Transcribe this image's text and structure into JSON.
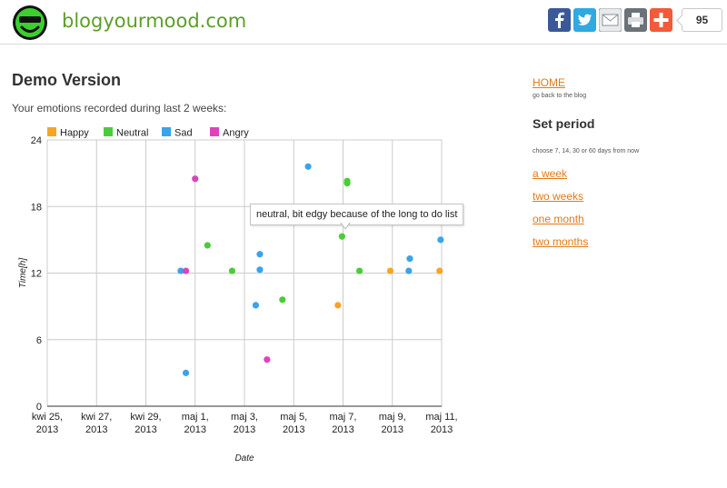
{
  "header": {
    "brand": "blogyourmood.com",
    "share_count": "95",
    "share_buttons": [
      {
        "icon": "facebook-icon",
        "color": "#3b5998"
      },
      {
        "icon": "twitter-icon",
        "color": "#2fa9e0"
      },
      {
        "icon": "email-icon",
        "color": "#9aa3a8"
      },
      {
        "icon": "print-icon",
        "color": "#6b7278"
      },
      {
        "icon": "add-icon",
        "color": "#f15a3a"
      }
    ]
  },
  "main": {
    "title": "Demo Version",
    "subtitle": "Your emotions recorded during last 2 weeks:"
  },
  "tooltip": {
    "text": "neutral, bit edgy because of the long to do list"
  },
  "sidebar": {
    "home_label": "HOME",
    "home_desc": "go back to the blog",
    "period_title": "Set period",
    "period_desc": "choose 7, 14, 30 or 60 days from now",
    "links": [
      "a week",
      "two weeks",
      "one month",
      "two months"
    ]
  },
  "chart_data": {
    "type": "scatter",
    "xlabel": "Date",
    "ylabel": "Time[h]",
    "ylim": [
      0,
      24
    ],
    "yticks": [
      0,
      6,
      12,
      18,
      24
    ],
    "xlim": [
      "2013-04-25",
      "2013-05-11"
    ],
    "xticks": [
      {
        "date": "2013-04-25",
        "line1": "kwi 25,",
        "line2": "2013"
      },
      {
        "date": "2013-04-27",
        "line1": "kwi 27,",
        "line2": "2013"
      },
      {
        "date": "2013-04-29",
        "line1": "kwi 29,",
        "line2": "2013"
      },
      {
        "date": "2013-05-01",
        "line1": "maj 1,",
        "line2": "2013"
      },
      {
        "date": "2013-05-03",
        "line1": "maj 3,",
        "line2": "2013"
      },
      {
        "date": "2013-05-05",
        "line1": "maj 5,",
        "line2": "2013"
      },
      {
        "date": "2013-05-07",
        "line1": "maj 7,",
        "line2": "2013"
      },
      {
        "date": "2013-05-09",
        "line1": "maj 9,",
        "line2": "2013"
      },
      {
        "date": "2013-05-11",
        "line1": "maj 11,",
        "line2": "2013"
      }
    ],
    "grid": true,
    "legend_position": "top-left",
    "series": [
      {
        "name": "Happy",
        "color": "#f5a623",
        "points": [
          {
            "x": "2013-05-06 19:00",
            "y": 9.1
          },
          {
            "x": "2013-05-08 22:00",
            "y": 12.2
          },
          {
            "x": "2013-05-10 22:00",
            "y": 12.2
          }
        ]
      },
      {
        "name": "Neutral",
        "color": "#4ccb3a",
        "points": [
          {
            "x": "2013-05-01 12:00",
            "y": 14.5
          },
          {
            "x": "2013-05-02 12:00",
            "y": 12.2
          },
          {
            "x": "2013-05-04 13:00",
            "y": 9.6
          },
          {
            "x": "2013-05-06 23:00",
            "y": 15.3
          },
          {
            "x": "2013-05-07 04:00",
            "y": 20.1
          },
          {
            "x": "2013-05-07 04:00",
            "y": 20.3
          },
          {
            "x": "2013-05-07 16:00",
            "y": 12.2
          }
        ]
      },
      {
        "name": "Sad",
        "color": "#39a3ec",
        "points": [
          {
            "x": "2013-04-30 10:00",
            "y": 12.2
          },
          {
            "x": "2013-04-30 15:00",
            "y": 3.0
          },
          {
            "x": "2013-05-03 11:00",
            "y": 9.1
          },
          {
            "x": "2013-05-03 15:00",
            "y": 12.3
          },
          {
            "x": "2013-05-03 15:00",
            "y": 13.7
          },
          {
            "x": "2013-05-05 14:00",
            "y": 21.6
          },
          {
            "x": "2013-05-09 16:00",
            "y": 12.2
          },
          {
            "x": "2013-05-09 17:00",
            "y": 13.3
          },
          {
            "x": "2013-05-10 23:00",
            "y": 15.0
          }
        ]
      },
      {
        "name": "Angry",
        "color": "#dd44bb",
        "points": [
          {
            "x": "2013-04-30 15:00",
            "y": 12.2
          },
          {
            "x": "2013-05-01 00:00",
            "y": 20.5
          },
          {
            "x": "2013-05-03 22:00",
            "y": 4.2
          }
        ]
      }
    ]
  }
}
